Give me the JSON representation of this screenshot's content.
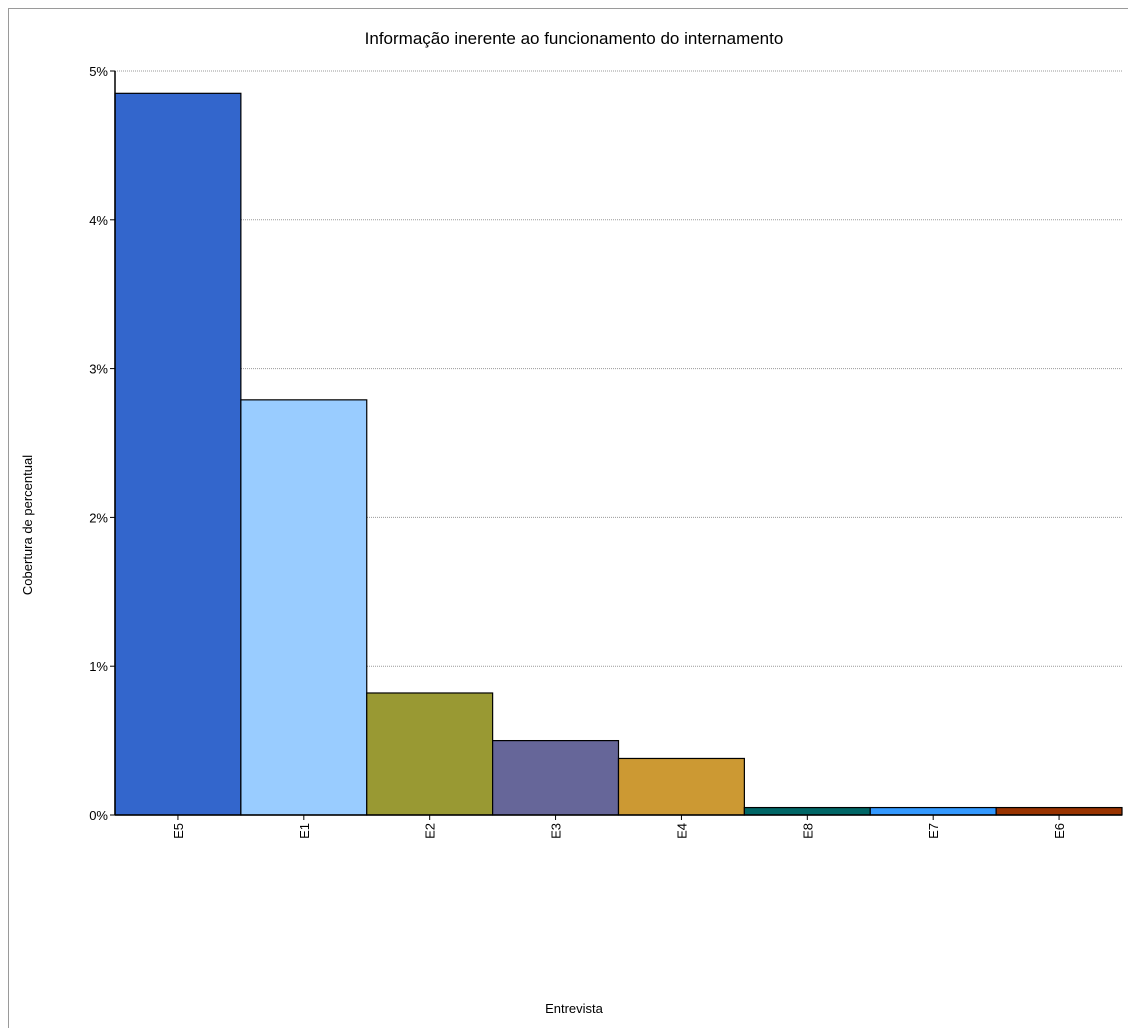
{
  "chart_data": {
    "type": "bar",
    "title": "Informação inerente ao funcionamento do internamento",
    "xlabel": "Entrevista",
    "ylabel": "Cobertura de percentual",
    "categories": [
      "E5",
      "E1",
      "E2",
      "E3",
      "E4",
      "E8",
      "E7",
      "E6"
    ],
    "values": [
      4.85,
      2.79,
      0.82,
      0.5,
      0.38,
      0.05,
      0.05,
      0.05
    ],
    "colors": [
      "#3366cc",
      "#99ccff",
      "#999933",
      "#666699",
      "#cc9933",
      "#006666",
      "#3399ff",
      "#993300"
    ],
    "ylim": [
      0,
      5
    ],
    "yticks": [
      0,
      1,
      2,
      3,
      4,
      5
    ],
    "ytick_labels": [
      "0%",
      "1%",
      "2%",
      "3%",
      "4%",
      "5%"
    ],
    "grid": true,
    "legend": "none"
  }
}
